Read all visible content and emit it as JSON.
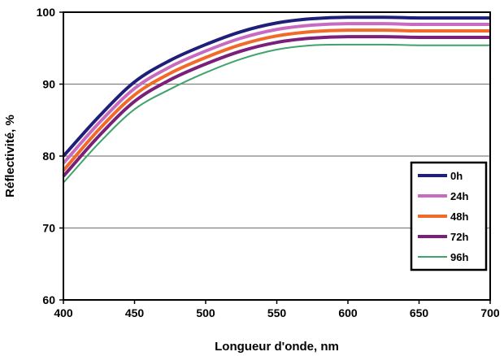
{
  "chart_data": {
    "type": "line",
    "title": "",
    "xlabel": "Longueur d'onde, nm",
    "ylabel": "Réflectivité, %",
    "xlim": [
      400,
      700
    ],
    "ylim": [
      60,
      100
    ],
    "xticks": [
      400,
      450,
      500,
      550,
      600,
      650,
      700
    ],
    "yticks": [
      60,
      70,
      80,
      90,
      100
    ],
    "x_tick_labels": [
      "400",
      "450",
      "500",
      "550",
      "600",
      "650",
      "700"
    ],
    "y_tick_labels": [
      "60",
      "70",
      "80",
      "90",
      "100"
    ],
    "grid": "horizontal",
    "legend_position": "bottom-right",
    "series": [
      {
        "name": "0h",
        "color": "#1f1f7a",
        "x": [
          400,
          425,
          450,
          475,
          500,
          525,
          550,
          575,
          600,
          625,
          650,
          675,
          700
        ],
        "values": [
          80,
          85.5,
          90.3,
          93.3,
          95.5,
          97.3,
          98.5,
          99.1,
          99.3,
          99.3,
          99.2,
          99.2,
          99.2
        ]
      },
      {
        "name": "24h",
        "color": "#c86bc0",
        "x": [
          400,
          425,
          450,
          475,
          500,
          525,
          550,
          575,
          600,
          625,
          650,
          675,
          700
        ],
        "values": [
          79,
          84.6,
          89.4,
          92.4,
          94.6,
          96.4,
          97.6,
          98.2,
          98.4,
          98.4,
          98.3,
          98.3,
          98.3
        ]
      },
      {
        "name": "48h",
        "color": "#f06a28",
        "x": [
          400,
          425,
          450,
          475,
          500,
          525,
          550,
          575,
          600,
          625,
          650,
          675,
          700
        ],
        "values": [
          78,
          83.7,
          88.5,
          91.5,
          93.7,
          95.5,
          96.7,
          97.3,
          97.5,
          97.5,
          97.4,
          97.4,
          97.4
        ]
      },
      {
        "name": "72h",
        "color": "#7a1f7a",
        "x": [
          400,
          425,
          450,
          475,
          500,
          525,
          550,
          575,
          600,
          625,
          650,
          675,
          700
        ],
        "values": [
          77.2,
          82.8,
          87.6,
          90.6,
          92.8,
          94.6,
          95.8,
          96.4,
          96.6,
          96.6,
          96.5,
          96.5,
          96.5
        ]
      },
      {
        "name": "96h",
        "color": "#3fa36b",
        "x": [
          400,
          425,
          450,
          475,
          500,
          525,
          550,
          575,
          600,
          625,
          650,
          675,
          700
        ],
        "values": [
          76.3,
          81.8,
          86.5,
          89.3,
          91.6,
          93.5,
          94.8,
          95.4,
          95.5,
          95.5,
          95.4,
          95.4,
          95.4
        ]
      }
    ]
  }
}
